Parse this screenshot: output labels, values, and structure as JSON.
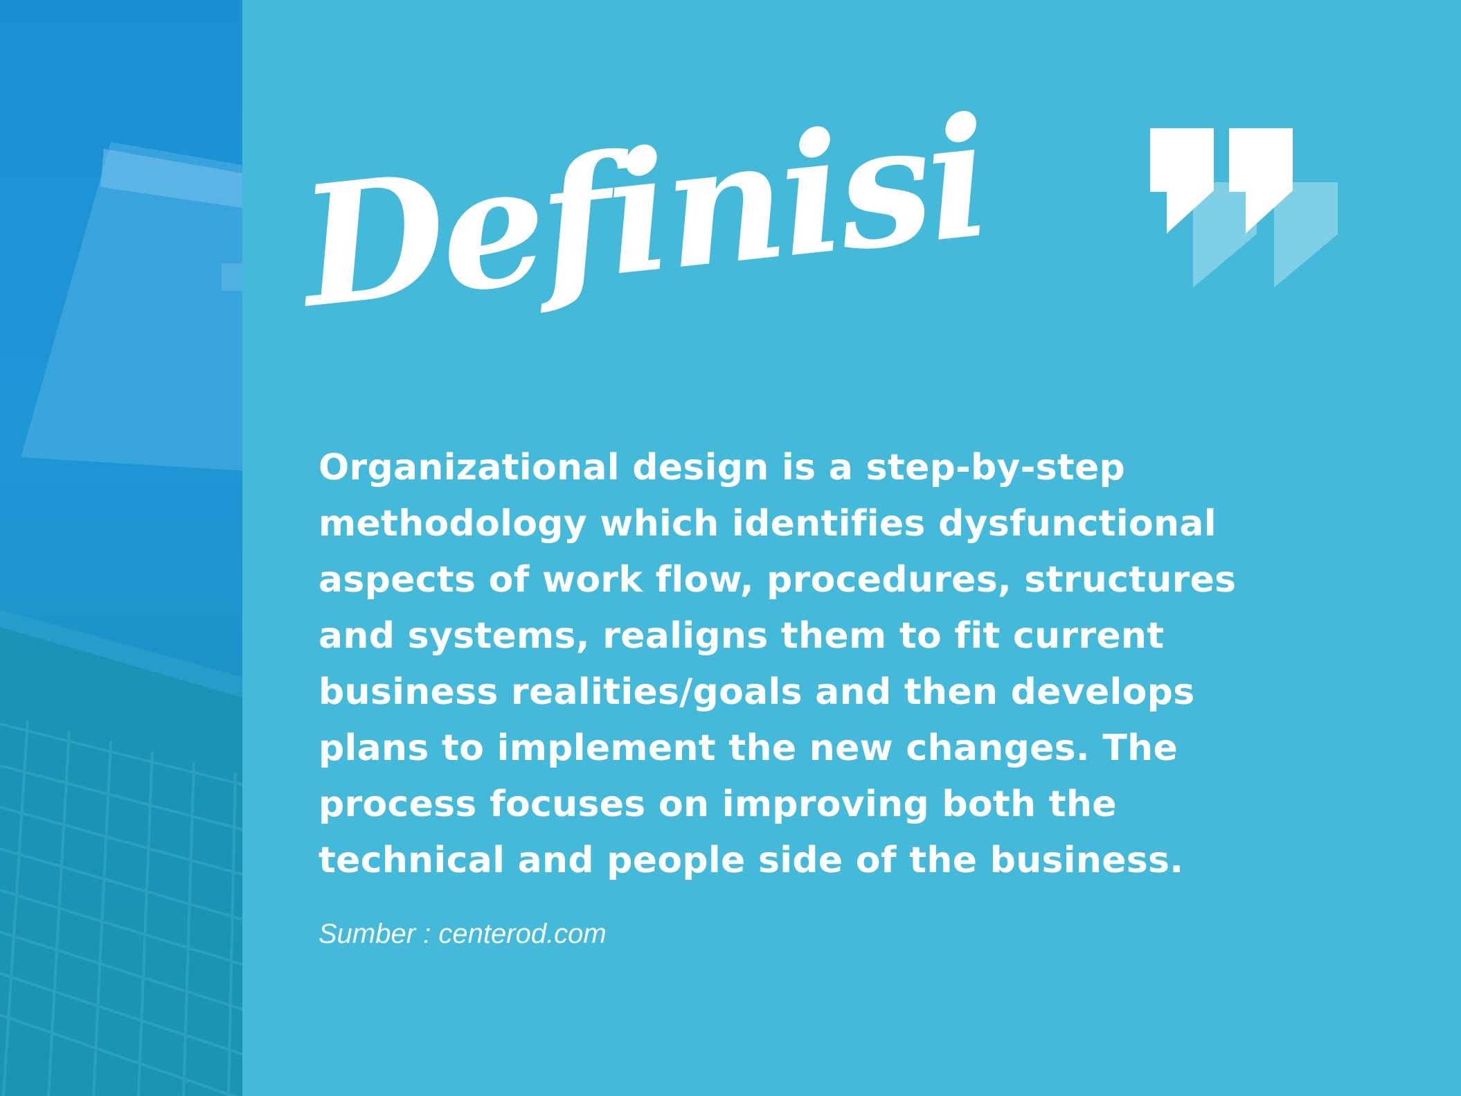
{
  "title": "Definisi",
  "body": "Organizational design is a step-by-step methodology which identifies dysfunctional aspects of work flow, procedures, structures and systems, realigns them to fit current business realities/goals and then develops plans to implement the new changes. The process focuses on improving both the technical and people side of the business.",
  "source": "Sumber : centerod.com",
  "icons": {
    "quote": "quote-icon",
    "photo": "laptop-photo"
  },
  "colors": {
    "background": "#45b9da",
    "photo_tint": "#1b8fd6",
    "text": "#ffffff",
    "quote_shadow": "#7fd0e6"
  }
}
